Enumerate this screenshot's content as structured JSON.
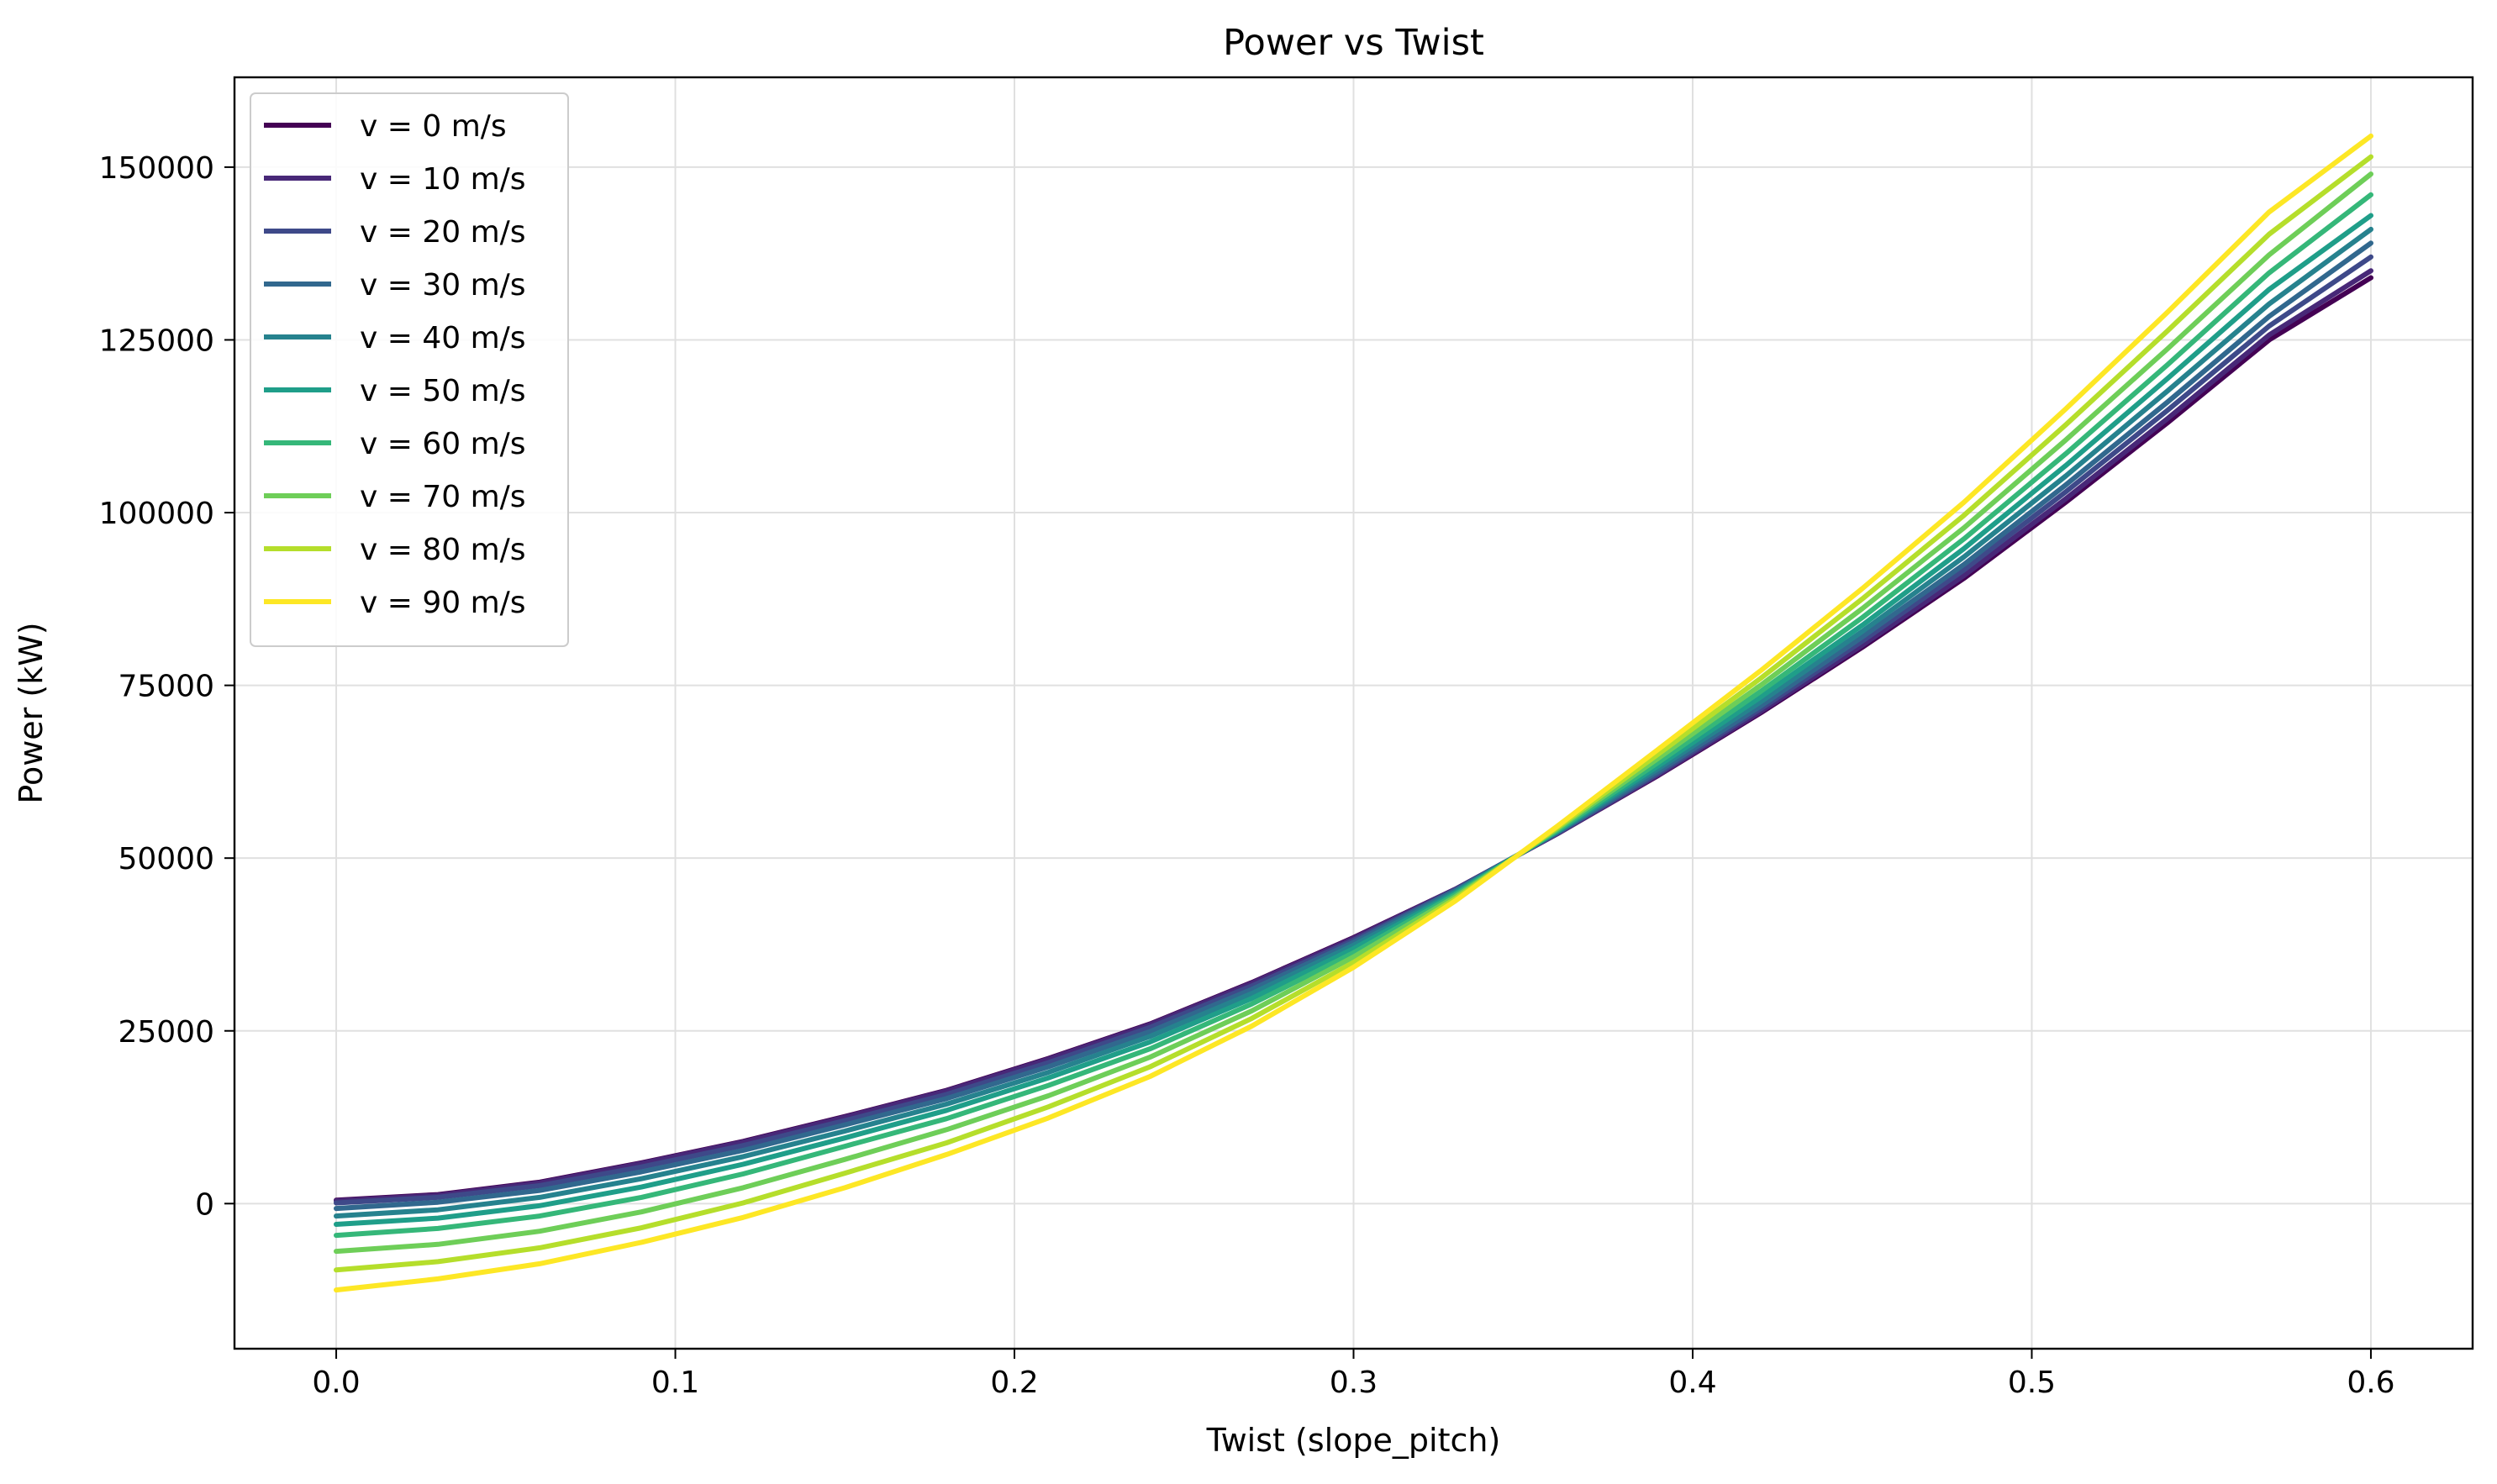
{
  "chart_data": {
    "type": "line",
    "title": "Power vs Twist",
    "xlabel": "Twist (slope_pitch)",
    "ylabel": "Power (kW)",
    "xlim": [
      -0.03,
      0.63
    ],
    "ylim": [
      -21000,
      163000
    ],
    "xticks": [
      0.0,
      0.1,
      0.2,
      0.3,
      0.4,
      0.5,
      0.6
    ],
    "xtick_labels": [
      "0.0",
      "0.1",
      "0.2",
      "0.3",
      "0.4",
      "0.5",
      "0.6"
    ],
    "yticks": [
      0,
      25000,
      50000,
      75000,
      100000,
      125000,
      150000
    ],
    "ytick_labels": [
      "0",
      "25000",
      "50000",
      "75000",
      "100000",
      "125000",
      "150000"
    ],
    "grid": true,
    "legend_position": "upper-left",
    "x": [
      0.0,
      0.03,
      0.06,
      0.09,
      0.12,
      0.15,
      0.18,
      0.21,
      0.24,
      0.27,
      0.3,
      0.33,
      0.36,
      0.39,
      0.42,
      0.45,
      0.48,
      0.51,
      0.54,
      0.57,
      0.6
    ],
    "series": [
      {
        "name": "v = 0 m/s",
        "color": "#440154",
        "values": [
          500,
          1300,
          3100,
          5900,
          9000,
          12600,
          16400,
          21000,
          26000,
          32000,
          38500,
          45500,
          53500,
          62000,
          71000,
          80500,
          90500,
          101500,
          113000,
          125000,
          134000
        ]
      },
      {
        "name": "v = 10 m/s",
        "color": "#482878",
        "values": [
          400,
          1200,
          3000,
          5800,
          8900,
          12500,
          16300,
          20900,
          25900,
          31900,
          38400,
          45500,
          53500,
          62100,
          71200,
          80800,
          90900,
          102000,
          113600,
          125700,
          135000
        ]
      },
      {
        "name": "v = 20 m/s",
        "color": "#3e4989",
        "values": [
          100,
          900,
          2600,
          5300,
          8400,
          12000,
          15800,
          20400,
          25500,
          31500,
          38100,
          45400,
          53600,
          62300,
          71600,
          81400,
          91700,
          103000,
          114800,
          127000,
          137000
        ]
      },
      {
        "name": "v = 30 m/s",
        "color": "#31688e",
        "values": [
          -700,
          200,
          1900,
          4600,
          7700,
          11400,
          15200,
          19800,
          24900,
          31000,
          37800,
          45300,
          53700,
          62600,
          72000,
          82000,
          92500,
          104000,
          116000,
          128400,
          139000
        ]
      },
      {
        "name": "v = 40 m/s",
        "color": "#26828e",
        "values": [
          -1800,
          -900,
          900,
          3600,
          6800,
          10500,
          14400,
          19000,
          24200,
          30400,
          37400,
          45100,
          53800,
          63000,
          72600,
          82800,
          93600,
          105300,
          117600,
          130200,
          141000
        ]
      },
      {
        "name": "v = 50 m/s",
        "color": "#1f9e89",
        "values": [
          -3000,
          -2100,
          -300,
          2400,
          5700,
          9500,
          13500,
          18200,
          23400,
          29700,
          36900,
          44900,
          53900,
          63400,
          73300,
          83700,
          94800,
          106800,
          119400,
          132300,
          143000
        ]
      },
      {
        "name": "v = 60 m/s",
        "color": "#35b779",
        "values": [
          -4600,
          -3600,
          -1800,
          900,
          4300,
          8300,
          12300,
          17100,
          22400,
          28900,
          36300,
          44700,
          54000,
          63900,
          74100,
          84800,
          96200,
          108500,
          121400,
          134700,
          146000
        ]
      },
      {
        "name": "v = 70 m/s",
        "color": "#6ece58",
        "values": [
          -6900,
          -5900,
          -4000,
          -1200,
          2300,
          6400,
          10700,
          15600,
          21200,
          27900,
          35700,
          44400,
          54200,
          64500,
          75000,
          86100,
          97800,
          110500,
          123700,
          137300,
          149000
        ]
      },
      {
        "name": "v = 80 m/s",
        "color": "#b5de2b",
        "values": [
          -9600,
          -8400,
          -6400,
          -3500,
          100,
          4400,
          8800,
          14000,
          19800,
          26800,
          34900,
          44100,
          54400,
          65100,
          76000,
          87500,
          99600,
          112700,
          126300,
          140300,
          151500
        ]
      },
      {
        "name": "v = 90 m/s",
        "color": "#fde725",
        "values": [
          -12500,
          -10900,
          -8700,
          -5600,
          -2000,
          2300,
          7100,
          12400,
          18400,
          25700,
          34200,
          43800,
          54600,
          65800,
          77100,
          89000,
          101500,
          115000,
          129000,
          143500,
          154500
        ]
      }
    ]
  }
}
